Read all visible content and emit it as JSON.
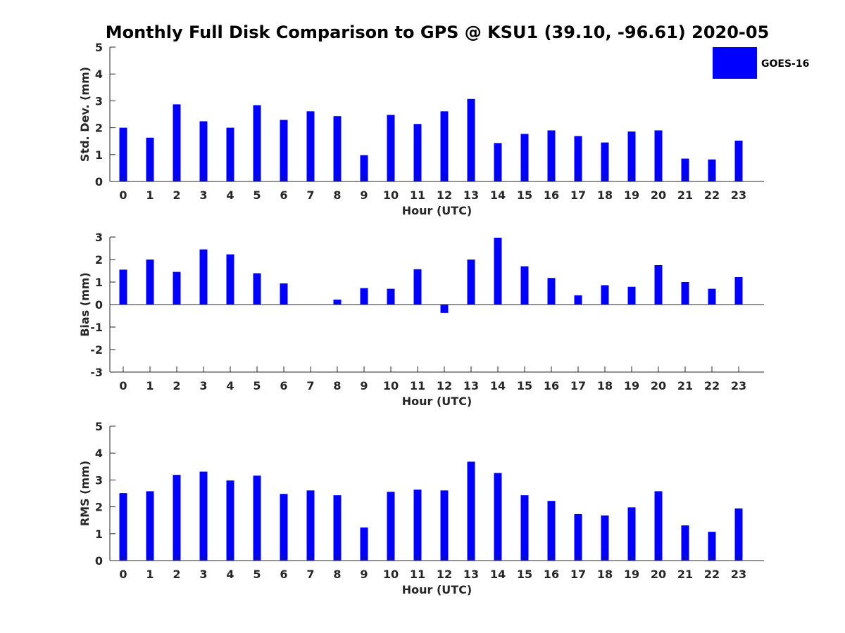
{
  "title": "Monthly Full Disk Comparison to GPS @ KSU1 (39.10, -96.61) 2020-05",
  "legend": {
    "label": "GOES-16",
    "color": "#0000ff",
    "placement": "top-right"
  },
  "chart_data": [
    {
      "type": "bar",
      "ylabel": "Std. Dev. (mm)",
      "xlabel": "Hour (UTC)",
      "ylim": [
        0,
        5
      ],
      "yticks": [
        "0",
        "1",
        "2",
        "3",
        "4",
        "5"
      ],
      "categories": [
        "0",
        "1",
        "2",
        "3",
        "4",
        "5",
        "6",
        "7",
        "8",
        "9",
        "10",
        "11",
        "12",
        "13",
        "14",
        "15",
        "16",
        "17",
        "18",
        "19",
        "20",
        "21",
        "22",
        "23"
      ],
      "series": [
        {
          "name": "GOES-16",
          "color": "#0000ff",
          "values": [
            2.0,
            1.63,
            2.87,
            2.24,
            2.0,
            2.84,
            2.29,
            2.61,
            2.43,
            0.98,
            2.48,
            2.14,
            2.61,
            3.07,
            1.43,
            1.77,
            1.9,
            1.69,
            1.45,
            1.86,
            1.9,
            0.85,
            0.82,
            1.52
          ]
        }
      ]
    },
    {
      "type": "bar",
      "ylabel": "Bias (mm)",
      "xlabel": "Hour (UTC)",
      "ylim": [
        -3,
        3
      ],
      "yticks": [
        "-3",
        "-2",
        "-1",
        "0",
        "1",
        "2",
        "3"
      ],
      "categories": [
        "0",
        "1",
        "2",
        "3",
        "4",
        "5",
        "6",
        "7",
        "8",
        "9",
        "10",
        "11",
        "12",
        "13",
        "14",
        "15",
        "16",
        "17",
        "18",
        "19",
        "20",
        "21",
        "22",
        "23"
      ],
      "series": [
        {
          "name": "GOES-16",
          "color": "#0000ff",
          "values": [
            1.55,
            2.0,
            1.45,
            2.45,
            2.23,
            1.39,
            0.94,
            0.0,
            0.22,
            0.73,
            0.7,
            1.57,
            -0.37,
            2.0,
            2.97,
            1.7,
            1.18,
            0.41,
            0.86,
            0.79,
            1.75,
            1.0,
            0.7,
            1.22
          ]
        }
      ]
    },
    {
      "type": "bar",
      "ylabel": "RMS (mm)",
      "xlabel": "Hour (UTC)",
      "ylim": [
        0,
        5
      ],
      "yticks": [
        "0",
        "1",
        "2",
        "3",
        "4",
        "5"
      ],
      "categories": [
        "0",
        "1",
        "2",
        "3",
        "4",
        "5",
        "6",
        "7",
        "8",
        "9",
        "10",
        "11",
        "12",
        "13",
        "14",
        "15",
        "16",
        "17",
        "18",
        "19",
        "20",
        "21",
        "22",
        "23"
      ],
      "series": [
        {
          "name": "GOES-16",
          "color": "#0000ff",
          "values": [
            2.51,
            2.58,
            3.19,
            3.31,
            2.98,
            3.16,
            2.48,
            2.61,
            2.43,
            1.23,
            2.56,
            2.64,
            2.61,
            3.68,
            3.26,
            2.43,
            2.22,
            1.73,
            1.68,
            1.98,
            2.58,
            1.31,
            1.07,
            1.94
          ]
        }
      ]
    }
  ]
}
